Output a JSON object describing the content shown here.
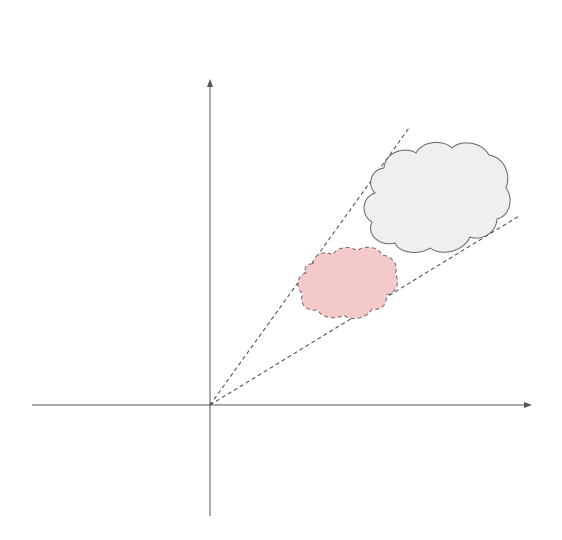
{
  "colors": {
    "axis": "#555555",
    "guide_lines": "#444444",
    "large_cloud_fill": "#efefef",
    "large_cloud_stroke": "#666666",
    "small_cloud_fill": "#f4c9ca",
    "small_cloud_stroke": "#7a6466",
    "background": "#ffffff"
  },
  "diagram": {
    "axes": [
      "x-axis",
      "y-axis"
    ],
    "guide_lines": 2,
    "clouds": [
      {
        "name": "large-cloud",
        "style": "solid"
      },
      {
        "name": "small-cloud",
        "style": "dashed"
      }
    ]
  }
}
